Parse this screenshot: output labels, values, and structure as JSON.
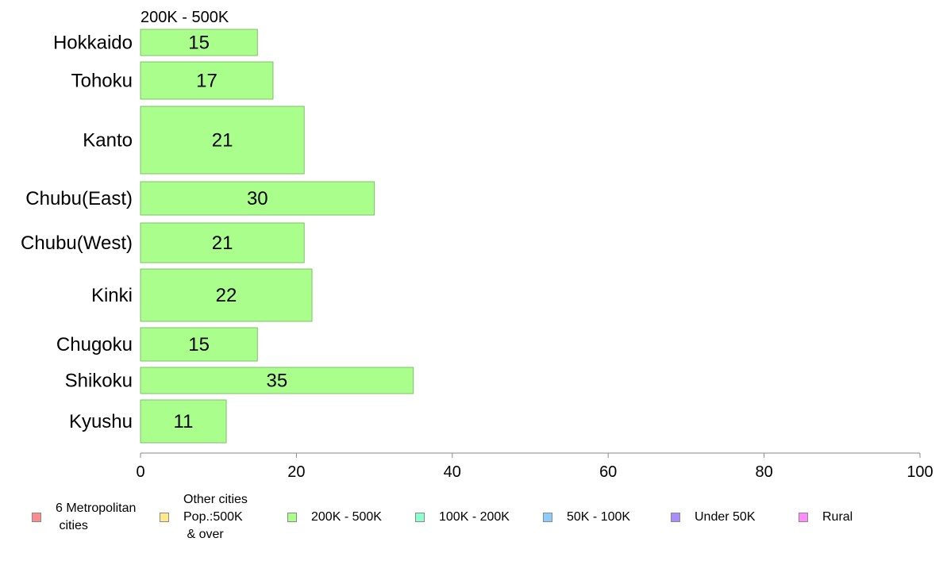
{
  "chart_data": {
    "type": "bar",
    "orientation": "horizontal",
    "panel_title": "200K - 500K",
    "categories": [
      "Hokkaido",
      "Tohoku",
      "Kanto",
      "Chubu(East)",
      "Chubu(West)",
      "Kinki",
      "Chugoku",
      "Shikoku",
      "Kyushu"
    ],
    "values": [
      15,
      17,
      21,
      30,
      21,
      22,
      15,
      35,
      11
    ],
    "value_labels": [
      "15",
      "17",
      "21",
      "30",
      "21",
      "22",
      "15",
      "35",
      "11"
    ],
    "bar_color": "#aaff8c",
    "xlim": [
      0,
      100
    ],
    "xticks": [
      0,
      20,
      40,
      60,
      80,
      100
    ],
    "xtick_labels": [
      "0",
      "20",
      "40",
      "60",
      "80",
      "100"
    ],
    "grid": false,
    "legend_position": "bottom"
  },
  "legend": [
    {
      "label": "6 Metropolitan\n cities",
      "color": "#ff8c8c"
    },
    {
      "label": "Other cities\nPop.:500K\n & over",
      "color": "#ffe88c"
    },
    {
      "label": "200K - 500K",
      "color": "#aaff8c"
    },
    {
      "label": "100K - 200K",
      "color": "#8cffcc"
    },
    {
      "label": "50K - 100K",
      "color": "#8cccff"
    },
    {
      "label": "Under 50K",
      "color": "#aa8cff"
    },
    {
      "label": "Rural",
      "color": "#ff8cff"
    }
  ]
}
